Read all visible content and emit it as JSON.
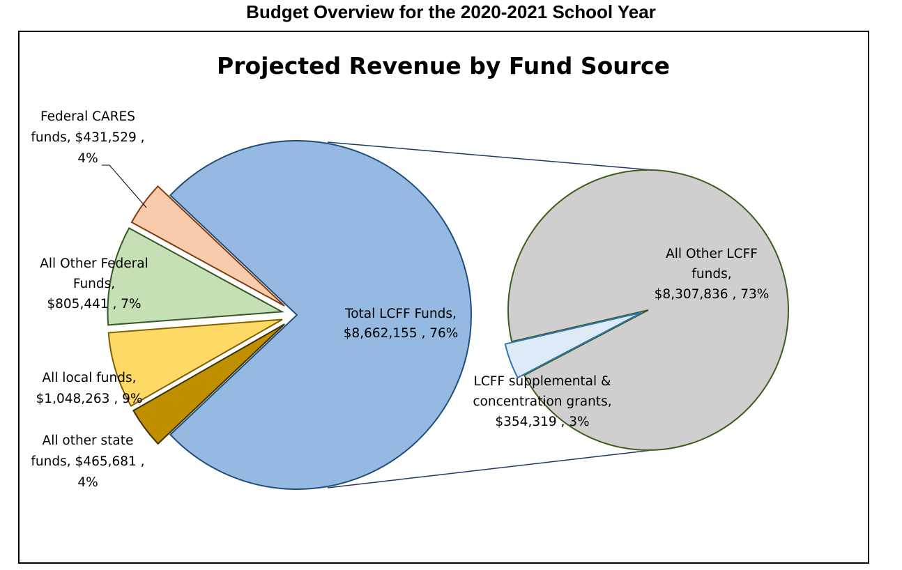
{
  "page_title": "Budget Overview for the 2020-2021 School Year",
  "chart_data": {
    "type": "pie",
    "subtype": "pie-of-pie",
    "title": "Projected Revenue by Fund Source",
    "main_pie": {
      "slices": [
        {
          "key": "lcff",
          "name": "Total LCFF Funds",
          "value": 8662155,
          "percent": 76,
          "color": "#95B9E0",
          "stroke": "#1F4E79",
          "label_lines": [
            "Total LCFF Funds,",
            "$8,662,155 , 76%"
          ]
        },
        {
          "key": "other_state",
          "name": "All other state funds",
          "value": 465681,
          "percent": 4,
          "color": "#F8CBAD",
          "stroke": "#843C0C",
          "label_lines": [
            "All other state",
            "funds,  $465,681 ,",
            "4%"
          ]
        },
        {
          "key": "local",
          "name": "All local funds",
          "value": 1048263,
          "percent": 9,
          "color": "#C5E0B4",
          "stroke": "#385723",
          "label_lines": [
            "All local funds,",
            "$1,048,263 , 9%"
          ]
        },
        {
          "key": "other_federal",
          "name": "All Other Federal Funds",
          "value": 805441,
          "percent": 7,
          "color": "#FFD966",
          "stroke": "#7F6000",
          "label_lines": [
            "All Other Federal",
            "Funds,",
            "$805,441 , 7%"
          ]
        },
        {
          "key": "cares",
          "name": "Federal CARES funds",
          "value": 431529,
          "percent": 4,
          "color": "#BF8F00",
          "stroke": "#3F3000",
          "label_lines": [
            "Federal CARES",
            "funds,  $431,529 ,",
            "4%"
          ]
        }
      ]
    },
    "secondary_pie": {
      "slices": [
        {
          "key": "other_lcff",
          "name": "All Other LCFF funds",
          "value": 8307836,
          "percent": 73,
          "color": "#D0CECE",
          "stroke": "#3B5E1E",
          "label_lines": [
            "All Other LCFF",
            "funds,",
            "$8,307,836 , 73%"
          ]
        },
        {
          "key": "supplemental",
          "name": "LCFF supplemental & concentration grants",
          "value": 354319,
          "percent": 3,
          "color": "#DEEBF7",
          "stroke": "#2E75B6",
          "label_lines": [
            "LCFF supplemental &",
            "concentration grants,",
            "$354,319 , 3%"
          ]
        }
      ]
    },
    "colors": {
      "connector": "#1F3864",
      "frame": "#000000"
    }
  }
}
